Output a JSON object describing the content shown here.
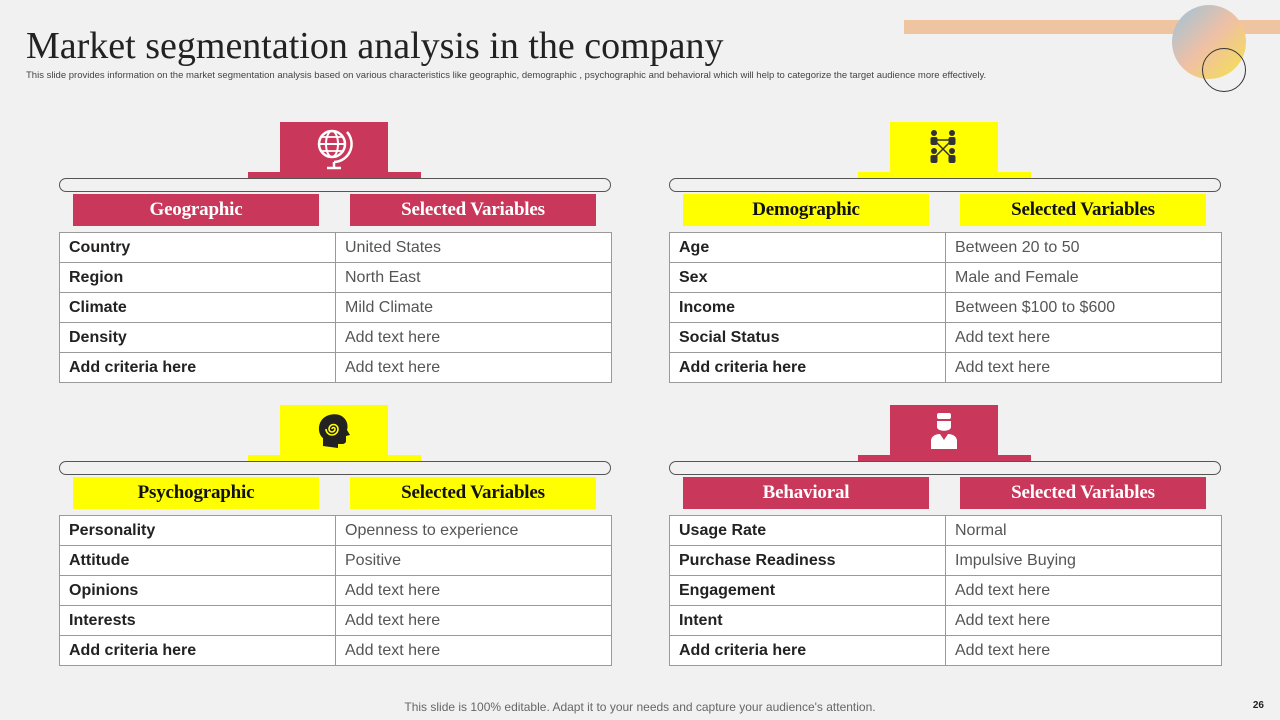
{
  "title": "Market segmentation analysis in the company",
  "subtitle": "This slide provides information on the market segmentation analysis based on various characteristics like geographic, demographic , psychographic and behavioral which will help to categorize the target audience more effectively.",
  "colors": {
    "accent_red": "#c9375a",
    "accent_yellow": "#ffff00",
    "decor_peach": "#efc4a0"
  },
  "sections": [
    {
      "header": "Geographic",
      "variables_header": "Selected Variables",
      "icon": "globe-icon",
      "rows": [
        {
          "criteria": "Country",
          "value": "United States"
        },
        {
          "criteria": "Region",
          "value": "North East"
        },
        {
          "criteria": "Climate",
          "value": "Mild Climate"
        },
        {
          "criteria": "Density",
          "value": "Add text here"
        },
        {
          "criteria": "Add criteria here",
          "value": "Add text here"
        }
      ]
    },
    {
      "header": "Demographic",
      "variables_header": "Selected Variables",
      "icon": "people-network-icon",
      "rows": [
        {
          "criteria": "Age",
          "value": "Between 20 to 50"
        },
        {
          "criteria": "Sex",
          "value": "Male and Female"
        },
        {
          "criteria": "Income",
          "value": "Between $100 to $600"
        },
        {
          "criteria": "Social Status",
          "value": "Add text here"
        },
        {
          "criteria": "Add criteria here",
          "value": "Add text here"
        }
      ]
    },
    {
      "header": "Psychographic",
      "variables_header": "Selected Variables",
      "icon": "head-spiral-icon",
      "rows": [
        {
          "criteria": "Personality",
          "value": "Openness to experience"
        },
        {
          "criteria": "Attitude",
          "value": "Positive"
        },
        {
          "criteria": "Opinions",
          "value": "Add text here"
        },
        {
          "criteria": "Interests",
          "value": "Add text here"
        },
        {
          "criteria": "Add criteria here",
          "value": "Add text here"
        }
      ]
    },
    {
      "header": "Behavioral",
      "variables_header": "Selected Variables",
      "icon": "person-icon",
      "rows": [
        {
          "criteria": "Usage Rate",
          "value": "Normal"
        },
        {
          "criteria": "Purchase Readiness",
          "value": "Impulsive  Buying"
        },
        {
          "criteria": "Engagement",
          "value": "Add text here"
        },
        {
          "criteria": "Intent",
          "value": "Add text here"
        },
        {
          "criteria": "Add criteria here",
          "value": "Add text here"
        }
      ]
    }
  ],
  "footer": "This slide is 100% editable. Adapt it to your needs and capture your audience's attention.",
  "page_number": "26"
}
